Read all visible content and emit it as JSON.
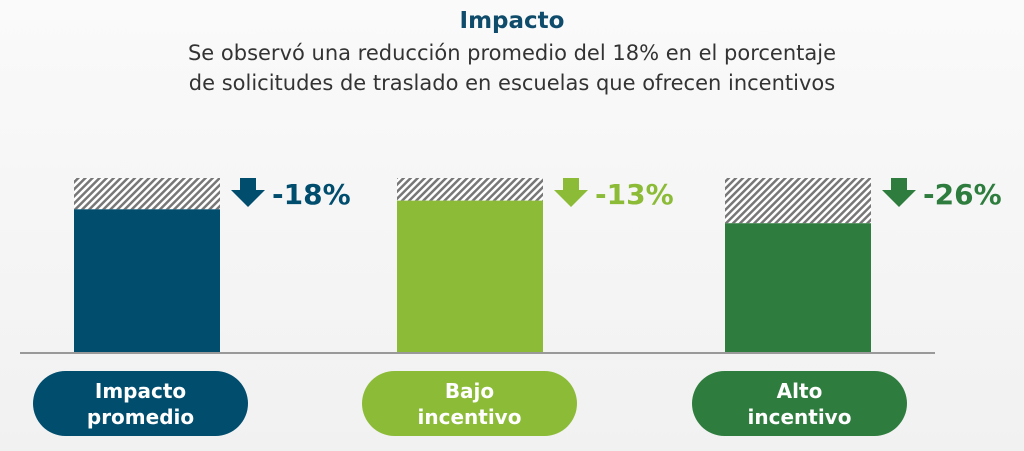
{
  "title": "Impacto",
  "subtitle_line1": "Se observó una reducción promedio del 18% en el porcentaje",
  "subtitle_line2": "de solicitudes de traslado en escuelas que ofrecen incentivos",
  "chart_data": {
    "type": "bar",
    "title": "Impacto",
    "categories": [
      "Impacto promedio",
      "Bajo incentivo",
      "Alto incentivo"
    ],
    "baseline": 100,
    "values": [
      82,
      87,
      74
    ],
    "labels": [
      "-18%",
      "-13%",
      "-26%"
    ],
    "colors": [
      "#004d6e",
      "#8cbb37",
      "#2e7d3e"
    ],
    "ylim": [
      0,
      100
    ]
  },
  "pills": [
    {
      "line1": "Impacto",
      "line2": "promedio"
    },
    {
      "line1": "Bajo",
      "line2": "incentivo"
    },
    {
      "line1": "Alto",
      "line2": "incentivo"
    }
  ]
}
